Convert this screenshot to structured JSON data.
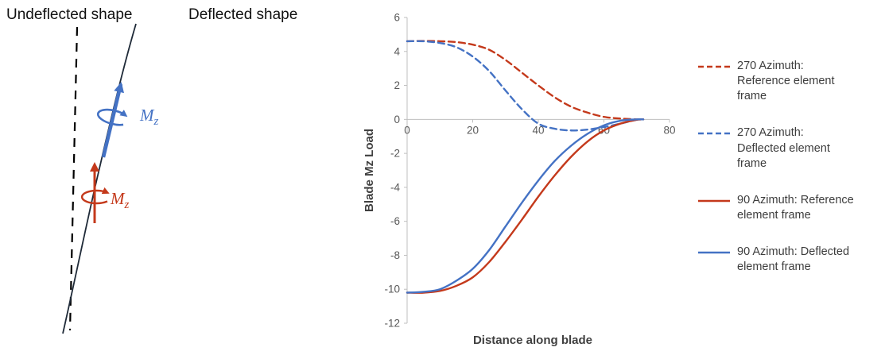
{
  "diagram": {
    "undeflected_label": "Undeflected shape",
    "deflected_label": "Deflected shape",
    "moment_symbol": "M",
    "moment_subscript": "z",
    "colors": {
      "reference_red": "#C4391B",
      "deflected_blue": "#4472C4",
      "shape_line": "#1F2A38"
    }
  },
  "chart_data": {
    "type": "line",
    "title": "",
    "xlabel": "Distance along blade",
    "ylabel": "Blade Mz Load",
    "xlim": [
      0,
      80
    ],
    "ylim": [
      -12,
      6
    ],
    "xticks": [
      0,
      20,
      40,
      60,
      80
    ],
    "yticks": [
      6,
      4,
      2,
      0,
      -2,
      -4,
      -6,
      -8,
      -10,
      -12
    ],
    "grid": false,
    "legend_position": "right",
    "axis_color": "#BFBFBF",
    "tick_label_color": "#595959",
    "axis_title_color": "#404040",
    "x": [
      0,
      5,
      10,
      15,
      20,
      25,
      30,
      35,
      40,
      45,
      50,
      55,
      60,
      65,
      70,
      72
    ],
    "series": [
      {
        "name": "270 Azimuth: Reference element frame",
        "legend_lines": [
          "270 Azimuth:",
          "Reference element",
          "frame"
        ],
        "color": "#C4391B",
        "style": "dashed",
        "values": [
          4.6,
          4.62,
          4.6,
          4.55,
          4.4,
          4.1,
          3.5,
          2.75,
          2.0,
          1.3,
          0.75,
          0.4,
          0.15,
          0.05,
          0.0,
          0.0
        ]
      },
      {
        "name": "270 Azimuth: Deflected element frame",
        "legend_lines": [
          "270 Azimuth:",
          "Deflected element",
          "frame"
        ],
        "color": "#4472C4",
        "style": "dashed",
        "values": [
          4.6,
          4.6,
          4.5,
          4.25,
          3.7,
          2.85,
          1.7,
          0.6,
          -0.25,
          -0.55,
          -0.65,
          -0.6,
          -0.45,
          -0.25,
          -0.02,
          0.0
        ]
      },
      {
        "name": "90 Azimuth: Reference element frame",
        "legend_lines": [
          "90 Azimuth: Reference",
          "element frame"
        ],
        "color": "#C4391B",
        "style": "solid",
        "values": [
          -10.2,
          -10.2,
          -10.1,
          -9.8,
          -9.3,
          -8.4,
          -7.2,
          -5.9,
          -4.55,
          -3.3,
          -2.2,
          -1.3,
          -0.65,
          -0.25,
          -0.02,
          0.0
        ]
      },
      {
        "name": "90 Azimuth: Deflected element frame",
        "legend_lines": [
          "90 Azimuth: Deflected",
          "element frame"
        ],
        "color": "#4472C4",
        "style": "solid",
        "values": [
          -10.2,
          -10.15,
          -10.0,
          -9.5,
          -8.8,
          -7.7,
          -6.3,
          -4.9,
          -3.6,
          -2.45,
          -1.55,
          -0.85,
          -0.35,
          -0.08,
          0.0,
          0.0
        ]
      }
    ]
  }
}
